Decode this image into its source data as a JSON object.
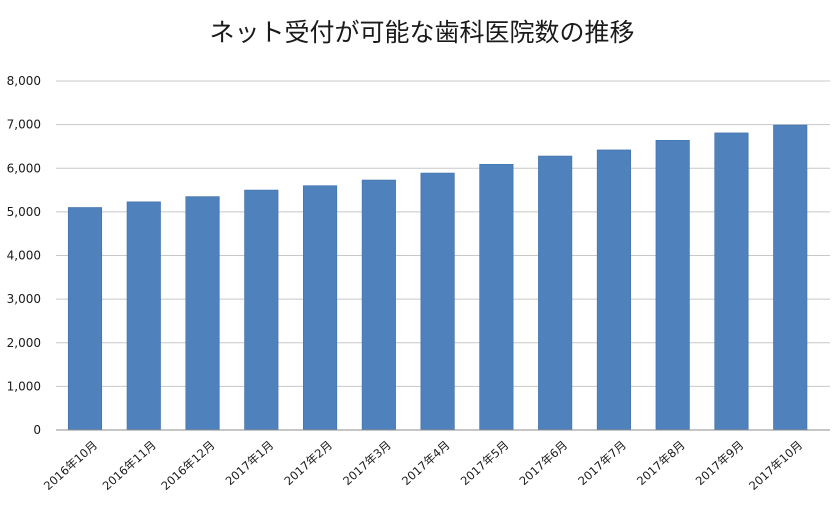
{
  "chart_data": {
    "type": "bar",
    "title": "ネット受付が可能な歯科医院数の推移",
    "xlabel": "",
    "ylabel": "",
    "categories": [
      "2016年10月",
      "2016年11月",
      "2016年12月",
      "2017年1月",
      "2017年2月",
      "2017年3月",
      "2017年4月",
      "2017年5月",
      "2017年6月",
      "2017年7月",
      "2017年8月",
      "2017年9月",
      "2017年10月"
    ],
    "values": [
      5100,
      5230,
      5350,
      5500,
      5600,
      5730,
      5890,
      6090,
      6280,
      6420,
      6640,
      6810,
      6990
    ],
    "ylim": [
      0,
      8000
    ],
    "yticks": [
      0,
      1000,
      2000,
      3000,
      4000,
      5000,
      6000,
      7000,
      8000
    ],
    "ytick_labels": [
      "0",
      "1,000",
      "2,000",
      "3,000",
      "4,000",
      "5,000",
      "6,000",
      "7,000",
      "8,000"
    ],
    "grid": true,
    "legend": "none",
    "bar_color": "#4f81bd"
  }
}
